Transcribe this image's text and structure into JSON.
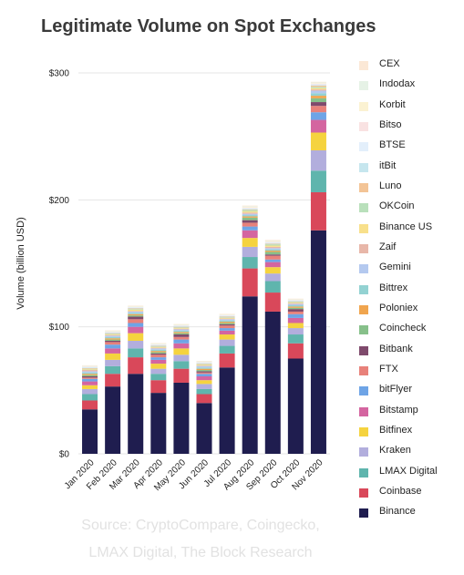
{
  "chart_data": {
    "type": "bar",
    "stacked": true,
    "title": "Legitimate Volume on Spot Exchanges",
    "ylabel": "Volume (billion USD)",
    "xlabel": "",
    "ylim": [
      0,
      300
    ],
    "yticks": [
      0,
      100,
      200,
      300
    ],
    "ytick_labels": [
      "$0",
      "$100",
      "$200",
      "$300"
    ],
    "grid": true,
    "legend_position": "right",
    "categories": [
      "Jan 2020",
      "Feb 2020",
      "Mar 2020",
      "Apr 2020",
      "May 2020",
      "Jun 2020",
      "Jul 2020",
      "Aug 2020",
      "Sep 2020",
      "Oct 2020",
      "Nov 2020"
    ],
    "series": [
      {
        "name": "Binance",
        "color": "#1f1d4f",
        "values": [
          35,
          53,
          63,
          48,
          56,
          40,
          68,
          124,
          112,
          75,
          176
        ]
      },
      {
        "name": "Coinbase",
        "color": "#d9485a",
        "values": [
          7,
          10,
          13,
          10,
          11,
          7,
          11,
          22,
          15,
          12,
          30
        ]
      },
      {
        "name": "LMAX Digital",
        "color": "#5fb5ad",
        "values": [
          5,
          6,
          7,
          5,
          6,
          4,
          6,
          9,
          9,
          7,
          17
        ]
      },
      {
        "name": "Kraken",
        "color": "#b2aedd",
        "values": [
          4,
          5,
          6,
          4,
          5,
          4,
          5,
          8,
          6,
          5,
          16
        ]
      },
      {
        "name": "Bitfinex",
        "color": "#f5d33f",
        "values": [
          3,
          5,
          6,
          4,
          5,
          3,
          4,
          7,
          5,
          4,
          14
        ]
      },
      {
        "name": "Bitstamp",
        "color": "#d465a0",
        "values": [
          3,
          4,
          5,
          3,
          4,
          3,
          3,
          6,
          4,
          4,
          10
        ]
      },
      {
        "name": "bitFlyer",
        "color": "#6ea4e6",
        "values": [
          2,
          3,
          3,
          2,
          3,
          2,
          2,
          3,
          2,
          3,
          6
        ]
      },
      {
        "name": "FTX",
        "color": "#e8817a",
        "values": [
          1,
          2,
          3,
          2,
          2,
          1,
          2,
          3,
          3,
          2,
          5
        ]
      },
      {
        "name": "Bitbank",
        "color": "#7f4a6c",
        "values": [
          1,
          1,
          2,
          1,
          2,
          1,
          1,
          2,
          1,
          2,
          3
        ]
      },
      {
        "name": "Coincheck",
        "color": "#87c08a",
        "values": [
          1,
          1,
          1,
          1,
          1,
          1,
          1,
          2,
          2,
          1,
          3
        ]
      },
      {
        "name": "Poloniex",
        "color": "#f0a54e",
        "values": [
          1,
          1,
          1,
          1,
          1,
          1,
          1,
          1,
          1,
          1,
          2
        ]
      },
      {
        "name": "Bittrex",
        "color": "#93d2d2",
        "values": [
          1,
          1,
          1,
          1,
          1,
          1,
          1,
          1,
          1,
          1,
          2
        ]
      },
      {
        "name": "Gemini",
        "color": "#b4c9ef",
        "values": [
          1,
          1,
          1,
          1,
          1,
          1,
          1,
          1,
          1,
          1,
          2
        ]
      },
      {
        "name": "Zaif",
        "color": "#e8b7a9",
        "values": [
          1,
          0.5,
          0.5,
          0.5,
          0.5,
          0.5,
          0.5,
          1,
          1,
          0.5,
          1
        ]
      },
      {
        "name": "Binance US",
        "color": "#f8e08b",
        "values": [
          0.5,
          0.5,
          1,
          0.5,
          0.5,
          0.5,
          0.5,
          1,
          1,
          0.5,
          1
        ]
      },
      {
        "name": "OKCoin",
        "color": "#b9e0bb",
        "values": [
          0.5,
          0.5,
          0.5,
          0.5,
          0.5,
          0.5,
          0.5,
          1,
          1,
          0.5,
          1
        ]
      },
      {
        "name": "Luno",
        "color": "#f3c496",
        "values": [
          0.5,
          0.5,
          0.5,
          0.5,
          0.5,
          0.5,
          0.5,
          0.5,
          0.5,
          0.5,
          1
        ]
      },
      {
        "name": "itBit",
        "color": "#c6e6ee",
        "values": [
          0.5,
          0.5,
          0.5,
          0.5,
          0.5,
          0.5,
          0.5,
          0.5,
          0.5,
          0.5,
          0.5
        ]
      },
      {
        "name": "BTSE",
        "color": "#e3effb",
        "values": [
          0.5,
          0.5,
          0.5,
          0.5,
          0.5,
          0.5,
          0.5,
          0.5,
          0.5,
          0.5,
          0.5
        ]
      },
      {
        "name": "Bitso",
        "color": "#f9e2e2",
        "values": [
          0.3,
          0.3,
          0.3,
          0.3,
          0.3,
          0.3,
          0.3,
          0.5,
          0.5,
          0.3,
          0.5
        ]
      },
      {
        "name": "Korbit",
        "color": "#fbf2d2",
        "values": [
          0.3,
          0.3,
          0.3,
          0.3,
          0.3,
          0.3,
          0.3,
          0.5,
          0.5,
          0.3,
          0.5
        ]
      },
      {
        "name": "Indodax",
        "color": "#e6f2e6",
        "values": [
          0.3,
          0.3,
          0.3,
          0.3,
          0.3,
          0.3,
          0.3,
          0.5,
          0.5,
          0.3,
          0.5
        ]
      },
      {
        "name": "CEX",
        "color": "#fbe8d6",
        "values": [
          0.3,
          0.3,
          0.3,
          0.3,
          0.3,
          0.3,
          0.3,
          0.5,
          0.5,
          0.3,
          0.5
        ]
      }
    ]
  },
  "source_line1": "Source: CryptoCompare, Coingecko,",
  "source_line2": "LMAX Digital, The Block Research"
}
